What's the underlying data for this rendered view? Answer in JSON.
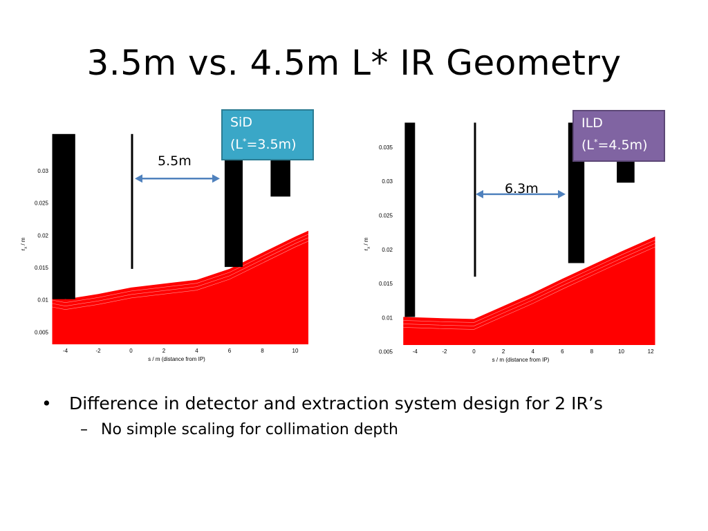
{
  "slide": {
    "title": "3.5m vs. 4.5m L* IR Geometry",
    "bullets": [
      {
        "text": "Difference in detector and extraction system design for 2 IR’s",
        "sub": [
          "No simple scaling for collimation depth"
        ]
      }
    ]
  },
  "callouts": {
    "sid": {
      "name": "SiD",
      "param_open": "(L",
      "sup": "*",
      "param_close": "=3.5m)",
      "color": "#3aa7c7"
    },
    "ild": {
      "name": "ILD",
      "param_open": "(L",
      "sup": "*",
      "param_close": "=4.5m)",
      "color": "#8064a2"
    }
  },
  "distances": {
    "sid": "5.5m",
    "ild": "6.3m"
  },
  "chart_data": [
    {
      "type": "area",
      "xlabel": "s / m (distance from IP)",
      "ylabel": "r / m",
      "ylabel_subscript": "x",
      "xlim": [
        -5,
        11
      ],
      "ylim": [
        0,
        0.0355
      ],
      "xticks": [
        -4,
        -2,
        0,
        2,
        4,
        6,
        8,
        10
      ],
      "yticks": [
        0.005,
        0.01,
        0.015,
        0.02,
        0.025,
        0.03
      ],
      "beam_envelope": {
        "x": [
          -4.8,
          -4,
          -2,
          0,
          2,
          4,
          6,
          8,
          10,
          10.8
        ],
        "y": [
          0.0105,
          0.0101,
          0.0109,
          0.0119,
          0.0125,
          0.0131,
          0.0148,
          0.0173,
          0.0198,
          0.0207
        ],
        "color": "#ff0000"
      },
      "masks": [
        {
          "x0": -4.8,
          "x1": -3.4,
          "y0": 0.0101,
          "y1": 0.0357,
          "color": "#000000"
        },
        {
          "x0": 0,
          "x1": 0.1,
          "y0": 0.0148,
          "y1": 0.0357,
          "color": "#000000"
        },
        {
          "x0": 5.7,
          "x1": 6.8,
          "y0": 0.0151,
          "y1": 0.0357,
          "color": "#000000"
        },
        {
          "x0": 8.5,
          "x1": 9.7,
          "y0": 0.026,
          "y1": 0.0357,
          "color": "#000000"
        }
      ],
      "distance_arrow": {
        "x0": 0,
        "x1": 5.5,
        "y": 0.0288,
        "color": "#4f81bd"
      }
    },
    {
      "type": "area",
      "xlabel": "s / m (distance from IP)",
      "ylabel": "r / m",
      "ylabel_subscript": "x",
      "xlim": [
        -5,
        12.5
      ],
      "ylim": [
        0,
        0.0383
      ],
      "xticks": [
        -4,
        -2,
        0,
        2,
        4,
        6,
        8,
        10,
        12
      ],
      "yticks": [
        0.005,
        0.01,
        0.015,
        0.02,
        0.025,
        0.03,
        0.035
      ],
      "beam_envelope": {
        "x": [
          -4.8,
          -2,
          0,
          2,
          4,
          6,
          8,
          10,
          12.3
        ],
        "y": [
          0.0101,
          0.0099,
          0.0098,
          0.0117,
          0.0136,
          0.0157,
          0.0177,
          0.0197,
          0.0219
        ],
        "color": "#ff0000"
      },
      "masks": [
        {
          "x0": -4.7,
          "x1": -4.0,
          "y0": 0.0101,
          "y1": 0.0386,
          "color": "#000000"
        },
        {
          "x0": 0,
          "x1": 0.1,
          "y0": 0.016,
          "y1": 0.0386,
          "color": "#000000"
        },
        {
          "x0": 6.4,
          "x1": 7.5,
          "y0": 0.018,
          "y1": 0.0386,
          "color": "#000000"
        },
        {
          "x0": 9.7,
          "x1": 10.9,
          "y0": 0.0298,
          "y1": 0.0386,
          "color": "#000000"
        }
      ],
      "distance_arrow": {
        "x0": 0,
        "x1": 6.3,
        "y": 0.0281,
        "color": "#4f81bd"
      }
    }
  ]
}
